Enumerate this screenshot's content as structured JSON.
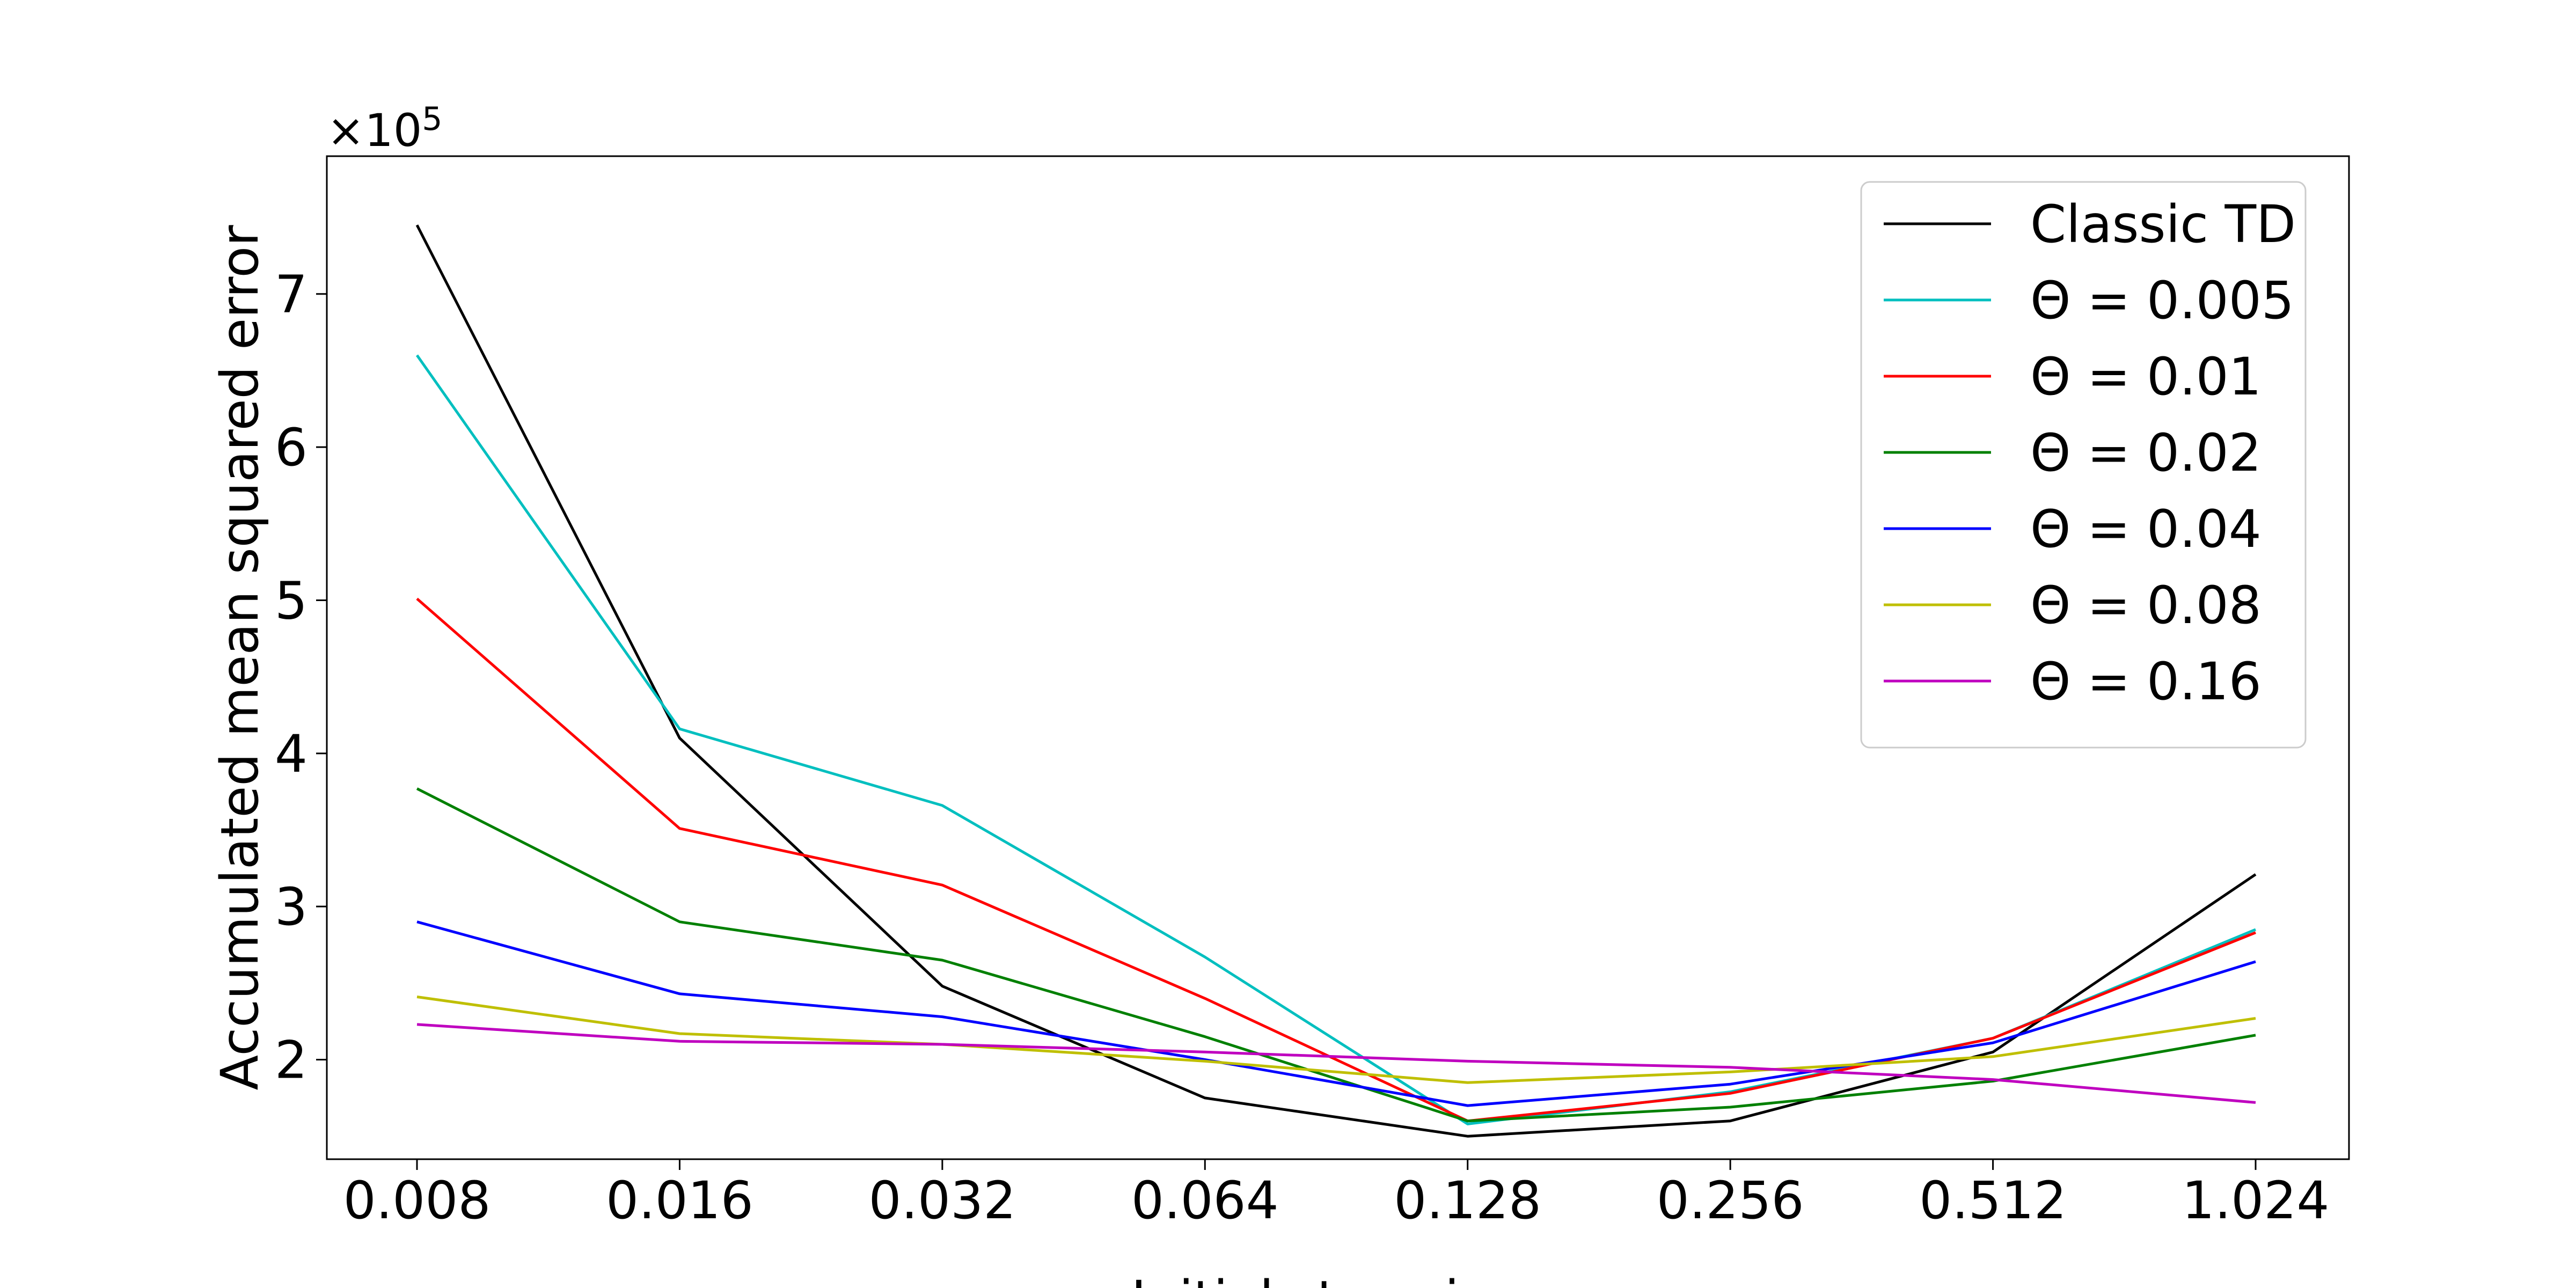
{
  "chart_data": {
    "type": "line",
    "title": "",
    "xlabel": "Initial step sizes",
    "ylabel": "Accumulated mean squared error",
    "y_scale_label": "×10^5",
    "y_scale_base": "×10",
    "y_scale_exp": "5",
    "categories": [
      "0.008",
      "0.016",
      "0.032",
      "0.064",
      "0.128",
      "0.256",
      "0.512",
      "1.024"
    ],
    "y_ticks": [
      2,
      3,
      4,
      5,
      6,
      7
    ],
    "y_tick_labels": [
      "2",
      "3",
      "4",
      "5",
      "6",
      "7"
    ],
    "ylim": [
      1.35,
      7.9
    ],
    "grid": false,
    "legend_position": "top-right",
    "series": [
      {
        "name": "Classic TD",
        "color": "#000000",
        "values": [
          7.45,
          4.1,
          2.48,
          1.75,
          1.5,
          1.6,
          2.05,
          3.21
        ]
      },
      {
        "name": "Θ = 0.005",
        "color": "#00bfbf",
        "values": [
          6.6,
          4.16,
          3.66,
          2.67,
          1.58,
          1.79,
          2.14,
          2.85
        ]
      },
      {
        "name": "Θ = 0.01",
        "color": "#ff0000",
        "values": [
          5.01,
          3.51,
          3.14,
          2.4,
          1.6,
          1.78,
          2.14,
          2.83
        ]
      },
      {
        "name": "Θ = 0.02",
        "color": "#008000",
        "values": [
          3.77,
          2.9,
          2.65,
          2.15,
          1.6,
          1.69,
          1.86,
          2.16
        ]
      },
      {
        "name": "Θ = 0.04",
        "color": "#0000ff",
        "values": [
          2.9,
          2.43,
          2.28,
          2.0,
          1.7,
          1.84,
          2.11,
          2.64
        ]
      },
      {
        "name": "Θ = 0.08",
        "color": "#bfbf00",
        "values": [
          2.41,
          2.17,
          2.1,
          1.99,
          1.85,
          1.92,
          2.02,
          2.27
        ]
      },
      {
        "name": "Θ = 0.16",
        "color": "#bf00bf",
        "values": [
          2.23,
          2.12,
          2.1,
          2.05,
          1.99,
          1.95,
          1.87,
          1.72
        ]
      }
    ]
  }
}
